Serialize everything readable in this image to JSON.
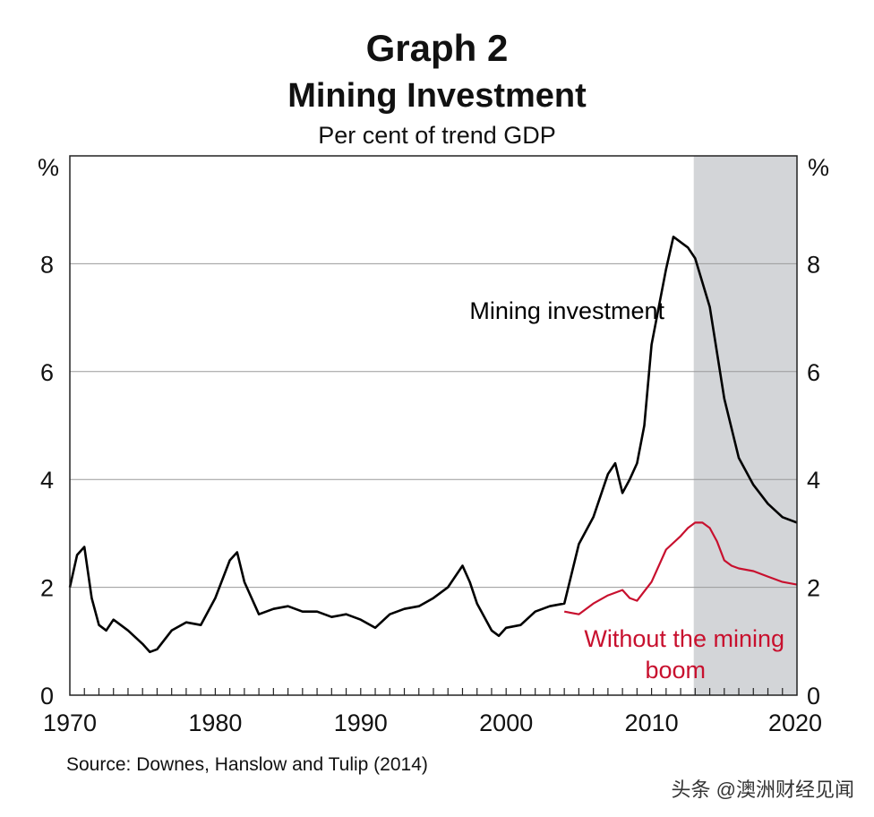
{
  "chart_data": {
    "type": "line",
    "title": "Graph 2",
    "subtitle": "Mining Investment",
    "ylabel": "Per cent of trend GDP",
    "y_unit_left": "%",
    "y_unit_right": "%",
    "xlim": [
      1970,
      2020
    ],
    "ylim": [
      0,
      10
    ],
    "x_ticks": [
      "1970",
      "1980",
      "1990",
      "2000",
      "2010",
      "2020"
    ],
    "y_ticks": [
      "0",
      "2",
      "4",
      "6",
      "8"
    ],
    "shaded_region": [
      2012.9,
      2020
    ],
    "source": "Source: Downes, Hanslow and Tulip (2014)",
    "series": [
      {
        "name": "Mining investment",
        "color": "#000000",
        "x": [
          1970,
          1970.5,
          1971,
          1971.5,
          1972,
          1972.5,
          1973,
          1973.5,
          1974,
          1975,
          1975.5,
          1976,
          1977,
          1978,
          1979,
          1980,
          1981,
          1981.5,
          1982,
          1983,
          1984,
          1985,
          1986,
          1987,
          1988,
          1989,
          1990,
          1991,
          1992,
          1993,
          1994,
          1995,
          1996,
          1997,
          1997.5,
          1998,
          1999,
          1999.5,
          2000,
          2001,
          2002,
          2003,
          2004,
          2005,
          2006,
          2007,
          2007.5,
          2008,
          2008.5,
          2009,
          2009.5,
          2010,
          2011,
          2011.5,
          2012,
          2012.5,
          2013,
          2014,
          2015,
          2016,
          2017,
          2018,
          2019,
          2020
        ],
        "values": [
          2.0,
          2.6,
          2.75,
          1.8,
          1.3,
          1.2,
          1.4,
          1.3,
          1.2,
          0.95,
          0.8,
          0.85,
          1.2,
          1.35,
          1.3,
          1.8,
          2.5,
          2.65,
          2.1,
          1.5,
          1.6,
          1.65,
          1.55,
          1.55,
          1.45,
          1.5,
          1.4,
          1.25,
          1.5,
          1.6,
          1.65,
          1.8,
          2.0,
          2.4,
          2.1,
          1.7,
          1.2,
          1.1,
          1.25,
          1.3,
          1.55,
          1.65,
          1.7,
          2.8,
          3.3,
          4.1,
          4.3,
          3.75,
          4.0,
          4.3,
          5.0,
          6.5,
          7.9,
          8.5,
          8.4,
          8.3,
          8.1,
          7.2,
          5.5,
          4.4,
          3.9,
          3.55,
          3.3,
          3.2
        ]
      },
      {
        "name": "Without the mining boom",
        "color": "#c8102e",
        "x": [
          2004,
          2005,
          2006,
          2007,
          2008,
          2008.5,
          2009,
          2010,
          2011,
          2012,
          2012.5,
          2013,
          2013.5,
          2014,
          2014.5,
          2015,
          2015.5,
          2016,
          2017,
          2018,
          2019,
          2020
        ],
        "values": [
          1.55,
          1.5,
          1.7,
          1.85,
          1.95,
          1.8,
          1.75,
          2.1,
          2.7,
          2.95,
          3.1,
          3.2,
          3.2,
          3.1,
          2.85,
          2.5,
          2.4,
          2.35,
          2.3,
          2.2,
          2.1,
          2.05
        ]
      }
    ],
    "annotations": [
      {
        "text": "Mining investment",
        "series": 0
      },
      {
        "text": "Without the mining",
        "series": 1
      },
      {
        "text": "boom",
        "series": 1
      }
    ]
  },
  "watermark": "头条 @澳洲财经见闻"
}
